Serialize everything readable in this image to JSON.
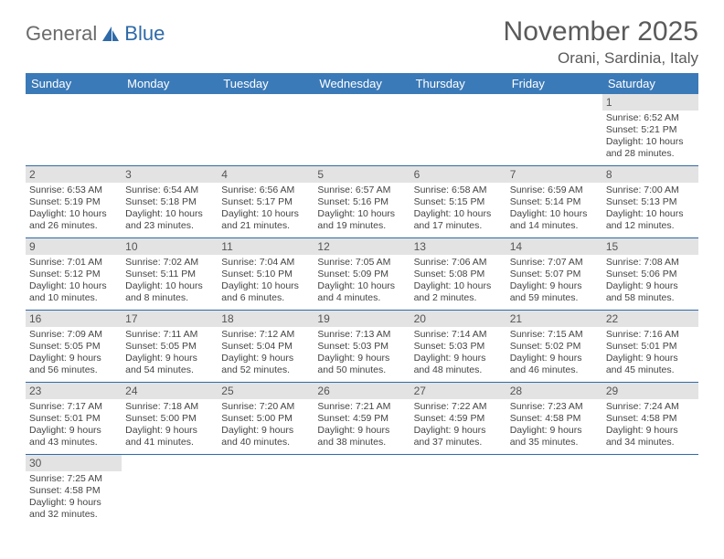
{
  "logo": {
    "text1": "General",
    "text2": "Blue"
  },
  "title": "November 2025",
  "location": "Orani, Sardinia, Italy",
  "colors": {
    "header_bg": "#3b7ab8",
    "header_text": "#ffffff",
    "border": "#2f6aa8",
    "daynum_bg": "#e3e3e3",
    "text": "#444444",
    "title_text": "#5a5a5a"
  },
  "weekdays": [
    "Sunday",
    "Monday",
    "Tuesday",
    "Wednesday",
    "Thursday",
    "Friday",
    "Saturday"
  ],
  "grid": [
    [
      null,
      null,
      null,
      null,
      null,
      null,
      {
        "n": "1",
        "sr": "Sunrise: 6:52 AM",
        "ss": "Sunset: 5:21 PM",
        "dl": "Daylight: 10 hours and 28 minutes."
      }
    ],
    [
      {
        "n": "2",
        "sr": "Sunrise: 6:53 AM",
        "ss": "Sunset: 5:19 PM",
        "dl": "Daylight: 10 hours and 26 minutes."
      },
      {
        "n": "3",
        "sr": "Sunrise: 6:54 AM",
        "ss": "Sunset: 5:18 PM",
        "dl": "Daylight: 10 hours and 23 minutes."
      },
      {
        "n": "4",
        "sr": "Sunrise: 6:56 AM",
        "ss": "Sunset: 5:17 PM",
        "dl": "Daylight: 10 hours and 21 minutes."
      },
      {
        "n": "5",
        "sr": "Sunrise: 6:57 AM",
        "ss": "Sunset: 5:16 PM",
        "dl": "Daylight: 10 hours and 19 minutes."
      },
      {
        "n": "6",
        "sr": "Sunrise: 6:58 AM",
        "ss": "Sunset: 5:15 PM",
        "dl": "Daylight: 10 hours and 17 minutes."
      },
      {
        "n": "7",
        "sr": "Sunrise: 6:59 AM",
        "ss": "Sunset: 5:14 PM",
        "dl": "Daylight: 10 hours and 14 minutes."
      },
      {
        "n": "8",
        "sr": "Sunrise: 7:00 AM",
        "ss": "Sunset: 5:13 PM",
        "dl": "Daylight: 10 hours and 12 minutes."
      }
    ],
    [
      {
        "n": "9",
        "sr": "Sunrise: 7:01 AM",
        "ss": "Sunset: 5:12 PM",
        "dl": "Daylight: 10 hours and 10 minutes."
      },
      {
        "n": "10",
        "sr": "Sunrise: 7:02 AM",
        "ss": "Sunset: 5:11 PM",
        "dl": "Daylight: 10 hours and 8 minutes."
      },
      {
        "n": "11",
        "sr": "Sunrise: 7:04 AM",
        "ss": "Sunset: 5:10 PM",
        "dl": "Daylight: 10 hours and 6 minutes."
      },
      {
        "n": "12",
        "sr": "Sunrise: 7:05 AM",
        "ss": "Sunset: 5:09 PM",
        "dl": "Daylight: 10 hours and 4 minutes."
      },
      {
        "n": "13",
        "sr": "Sunrise: 7:06 AM",
        "ss": "Sunset: 5:08 PM",
        "dl": "Daylight: 10 hours and 2 minutes."
      },
      {
        "n": "14",
        "sr": "Sunrise: 7:07 AM",
        "ss": "Sunset: 5:07 PM",
        "dl": "Daylight: 9 hours and 59 minutes."
      },
      {
        "n": "15",
        "sr": "Sunrise: 7:08 AM",
        "ss": "Sunset: 5:06 PM",
        "dl": "Daylight: 9 hours and 58 minutes."
      }
    ],
    [
      {
        "n": "16",
        "sr": "Sunrise: 7:09 AM",
        "ss": "Sunset: 5:05 PM",
        "dl": "Daylight: 9 hours and 56 minutes."
      },
      {
        "n": "17",
        "sr": "Sunrise: 7:11 AM",
        "ss": "Sunset: 5:05 PM",
        "dl": "Daylight: 9 hours and 54 minutes."
      },
      {
        "n": "18",
        "sr": "Sunrise: 7:12 AM",
        "ss": "Sunset: 5:04 PM",
        "dl": "Daylight: 9 hours and 52 minutes."
      },
      {
        "n": "19",
        "sr": "Sunrise: 7:13 AM",
        "ss": "Sunset: 5:03 PM",
        "dl": "Daylight: 9 hours and 50 minutes."
      },
      {
        "n": "20",
        "sr": "Sunrise: 7:14 AM",
        "ss": "Sunset: 5:03 PM",
        "dl": "Daylight: 9 hours and 48 minutes."
      },
      {
        "n": "21",
        "sr": "Sunrise: 7:15 AM",
        "ss": "Sunset: 5:02 PM",
        "dl": "Daylight: 9 hours and 46 minutes."
      },
      {
        "n": "22",
        "sr": "Sunrise: 7:16 AM",
        "ss": "Sunset: 5:01 PM",
        "dl": "Daylight: 9 hours and 45 minutes."
      }
    ],
    [
      {
        "n": "23",
        "sr": "Sunrise: 7:17 AM",
        "ss": "Sunset: 5:01 PM",
        "dl": "Daylight: 9 hours and 43 minutes."
      },
      {
        "n": "24",
        "sr": "Sunrise: 7:18 AM",
        "ss": "Sunset: 5:00 PM",
        "dl": "Daylight: 9 hours and 41 minutes."
      },
      {
        "n": "25",
        "sr": "Sunrise: 7:20 AM",
        "ss": "Sunset: 5:00 PM",
        "dl": "Daylight: 9 hours and 40 minutes."
      },
      {
        "n": "26",
        "sr": "Sunrise: 7:21 AM",
        "ss": "Sunset: 4:59 PM",
        "dl": "Daylight: 9 hours and 38 minutes."
      },
      {
        "n": "27",
        "sr": "Sunrise: 7:22 AM",
        "ss": "Sunset: 4:59 PM",
        "dl": "Daylight: 9 hours and 37 minutes."
      },
      {
        "n": "28",
        "sr": "Sunrise: 7:23 AM",
        "ss": "Sunset: 4:58 PM",
        "dl": "Daylight: 9 hours and 35 minutes."
      },
      {
        "n": "29",
        "sr": "Sunrise: 7:24 AM",
        "ss": "Sunset: 4:58 PM",
        "dl": "Daylight: 9 hours and 34 minutes."
      }
    ],
    [
      {
        "n": "30",
        "sr": "Sunrise: 7:25 AM",
        "ss": "Sunset: 4:58 PM",
        "dl": "Daylight: 9 hours and 32 minutes."
      },
      null,
      null,
      null,
      null,
      null,
      null
    ]
  ]
}
